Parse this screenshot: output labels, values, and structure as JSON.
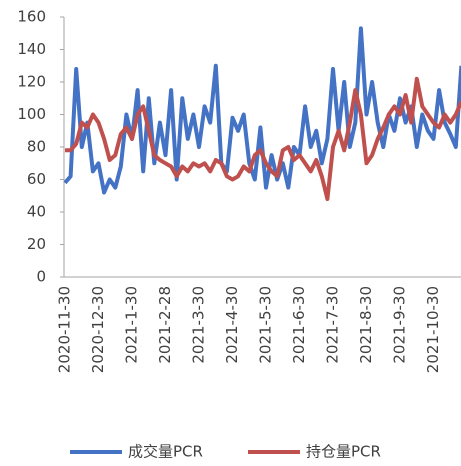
{
  "chart_data": {
    "type": "line",
    "categories": [
      "2020-11-30",
      null,
      null,
      null,
      null,
      null,
      "2020-12-30",
      null,
      null,
      null,
      null,
      null,
      "2021-1-30",
      null,
      null,
      null,
      null,
      null,
      "2021-2-28",
      null,
      null,
      null,
      null,
      null,
      "2021-3-30",
      null,
      null,
      null,
      null,
      null,
      "2021-4-30",
      null,
      null,
      null,
      null,
      null,
      "2021-5-30",
      null,
      null,
      null,
      null,
      null,
      "2021-6-30",
      null,
      null,
      null,
      null,
      null,
      "2021-7-30",
      null,
      null,
      null,
      null,
      null,
      "2021-8-30",
      null,
      null,
      null,
      null,
      null,
      "2021-9-30",
      null,
      null,
      null,
      null,
      null,
      "2021-10-30",
      null,
      null,
      null,
      null,
      null
    ],
    "series": [
      {
        "name": "成交量PCR",
        "color": "#4472c4",
        "values": [
          58,
          62,
          128,
          80,
          95,
          65,
          70,
          52,
          60,
          55,
          68,
          100,
          85,
          115,
          65,
          110,
          70,
          95,
          75,
          115,
          60,
          110,
          85,
          100,
          80,
          105,
          95,
          130,
          70,
          65,
          98,
          90,
          100,
          70,
          60,
          92,
          55,
          75,
          60,
          70,
          55,
          80,
          75,
          105,
          80,
          90,
          70,
          85,
          128,
          90,
          120,
          80,
          95,
          153,
          100,
          120,
          95,
          80,
          100,
          90,
          110,
          95,
          105,
          80,
          100,
          90,
          85,
          115,
          95,
          88,
          80,
          130
        ]
      },
      {
        "name": "持仓量PCR",
        "color": "#c0504d",
        "values": [
          78,
          78,
          82,
          95,
          92,
          100,
          95,
          85,
          72,
          75,
          88,
          92,
          85,
          100,
          105,
          90,
          75,
          72,
          70,
          68,
          62,
          68,
          65,
          70,
          68,
          70,
          65,
          72,
          70,
          62,
          60,
          62,
          68,
          65,
          75,
          78,
          70,
          65,
          62,
          78,
          80,
          72,
          75,
          70,
          65,
          72,
          62,
          48,
          80,
          90,
          78,
          95,
          115,
          100,
          70,
          75,
          85,
          92,
          100,
          105,
          100,
          112,
          95,
          122,
          105,
          100,
          95,
          92,
          100,
          95,
          100,
          108
        ]
      }
    ],
    "ylim": [
      0,
      160
    ],
    "yticks": [
      0,
      20,
      40,
      60,
      80,
      100,
      120,
      140,
      160
    ],
    "grid": false,
    "legend": "bottom"
  }
}
